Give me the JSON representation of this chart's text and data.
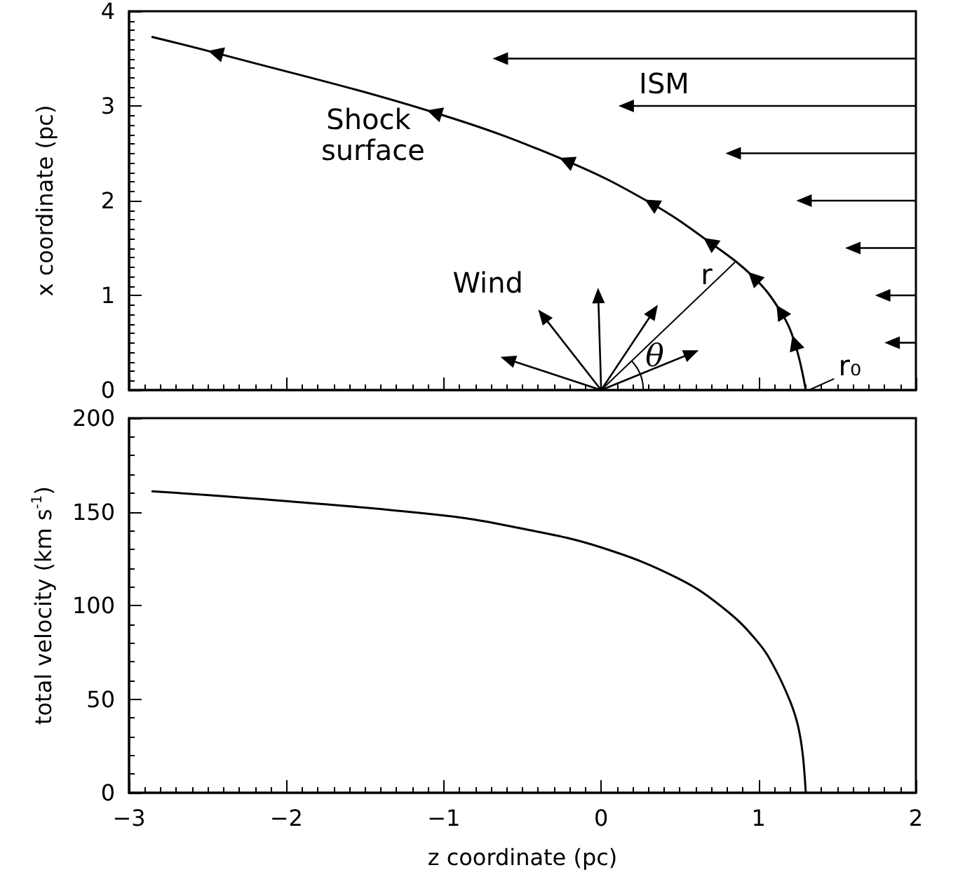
{
  "chart_data": [
    {
      "type": "line",
      "marker": "triangle",
      "ylabel": "x coordinate (pc)",
      "xlim": [
        -3,
        2
      ],
      "xticks": [
        -3,
        -2,
        -1,
        0,
        1,
        2
      ],
      "ylim": [
        0,
        4
      ],
      "yticks": [
        0,
        1,
        2,
        3,
        4
      ],
      "tick_labels": "y",
      "x": [
        -2.857,
        -2.45,
        -1.06,
        -0.22,
        0.32,
        0.69,
        0.97,
        1.14,
        1.23,
        1.3
      ],
      "series": [
        {
          "color": "#000000",
          "values": [
            3.73,
            3.56,
            2.93,
            2.42,
            1.97,
            1.56,
            1.19,
            0.83,
            0.5,
            0
          ]
        }
      ],
      "annotations": [
        "ISM",
        "Shock surface",
        "Wind",
        "r",
        "θ",
        "r₀"
      ]
    },
    {
      "type": "line",
      "xlabel": "z coordinate (pc)",
      "ylabel": "total velocity (km s$^{-1}$)",
      "xlim": [
        -3,
        2
      ],
      "xticks": [
        -3,
        -2,
        -1,
        0,
        1,
        2
      ],
      "ylim": [
        0,
        200
      ],
      "yticks": [
        0,
        50,
        100,
        150,
        200
      ],
      "x": [
        -2.857,
        -2,
        -1,
        -0.5,
        0,
        0.5,
        0.8,
        1.0,
        1.1,
        1.2,
        1.25,
        1.28,
        1.3
      ],
      "series": [
        {
          "color": "#000000",
          "values": [
            161,
            155.7,
            148,
            141,
            131,
            114,
            97,
            80,
            67,
            49,
            36,
            21,
            0
          ]
        }
      ]
    }
  ]
}
